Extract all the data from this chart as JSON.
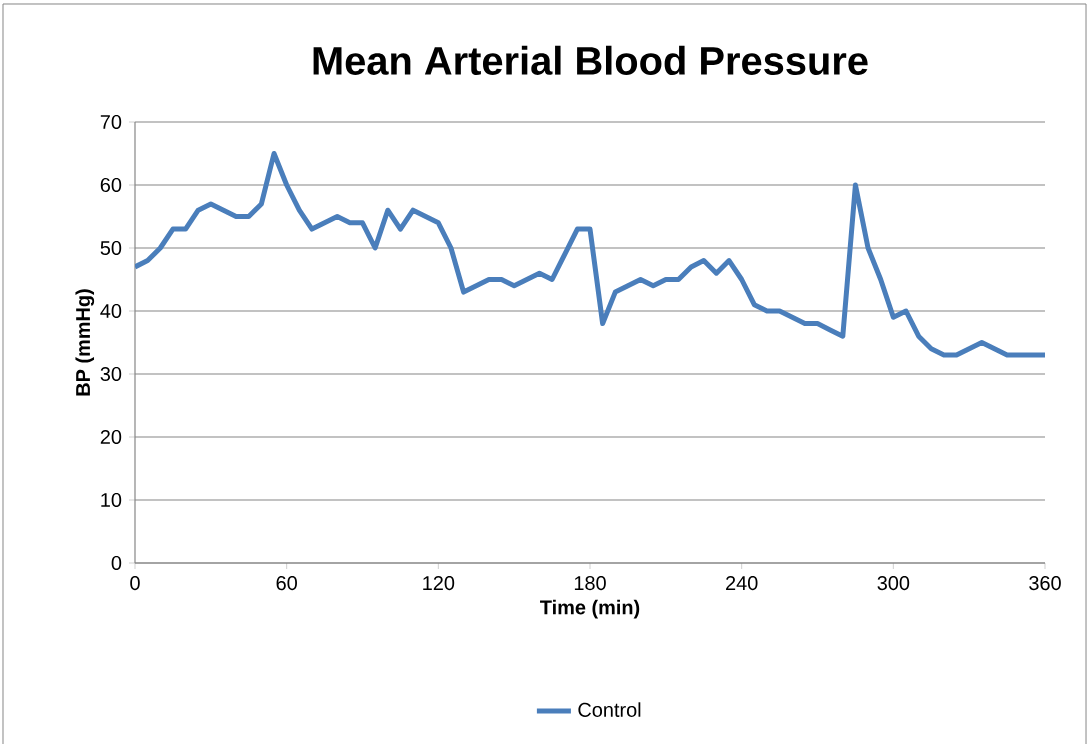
{
  "chart_data": {
    "type": "line",
    "title": "Mean Arterial Blood Pressure",
    "xlabel": "Time (min)",
    "ylabel": "BP (mmHg)",
    "x": [
      0,
      5,
      10,
      15,
      20,
      25,
      30,
      35,
      40,
      45,
      50,
      55,
      60,
      65,
      70,
      75,
      80,
      85,
      90,
      95,
      100,
      105,
      110,
      115,
      120,
      125,
      130,
      135,
      140,
      145,
      150,
      155,
      160,
      165,
      170,
      175,
      180,
      185,
      190,
      195,
      200,
      205,
      210,
      215,
      220,
      225,
      230,
      235,
      240,
      245,
      250,
      255,
      260,
      265,
      270,
      275,
      280,
      285,
      290,
      295,
      300,
      305,
      310,
      315,
      320,
      325,
      330,
      335,
      340,
      345,
      350,
      355,
      360
    ],
    "series": [
      {
        "name": "Control",
        "color": "#4a7ebb",
        "values": [
          47,
          48,
          50,
          53,
          53,
          56,
          57,
          56,
          55,
          55,
          57,
          65,
          60,
          56,
          53,
          54,
          55,
          54,
          54,
          50,
          56,
          53,
          56,
          55,
          54,
          50,
          43,
          44,
          45,
          45,
          44,
          45,
          46,
          45,
          49,
          53,
          53,
          38,
          43,
          44,
          45,
          44,
          45,
          45,
          47,
          48,
          46,
          48,
          45,
          41,
          40,
          40,
          39,
          38,
          38,
          37,
          36,
          60,
          50,
          45,
          39,
          40,
          36,
          34,
          33,
          33,
          34,
          35,
          34,
          33,
          33,
          33,
          33
        ]
      }
    ],
    "xlim": [
      0,
      360
    ],
    "xticks": [
      0,
      60,
      120,
      180,
      240,
      300,
      360
    ],
    "ylim": [
      0,
      70
    ],
    "yticks": [
      0,
      10,
      20,
      30,
      40,
      50,
      60,
      70
    ],
    "grid": "y",
    "legend": "bottom",
    "marker": "none",
    "line_style": "solid"
  }
}
